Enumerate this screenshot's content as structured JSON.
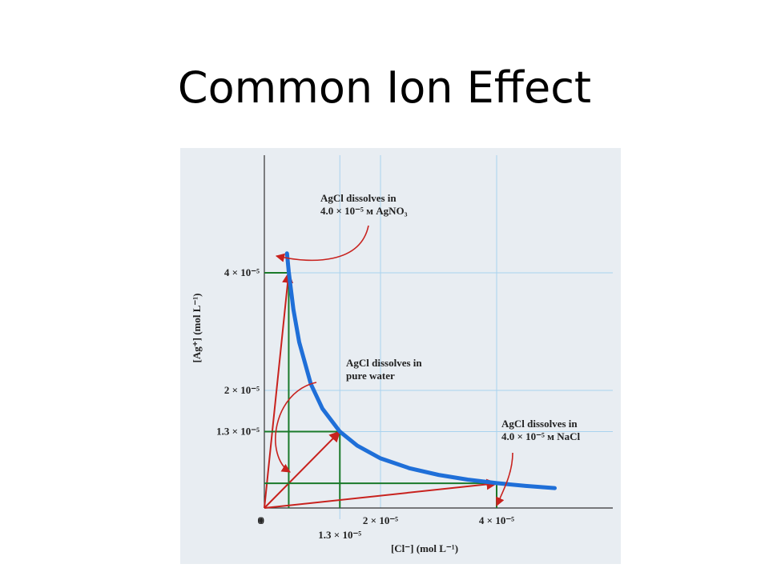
{
  "title": "Common Ion Effect",
  "chart_data": {
    "type": "line",
    "x_label": "[Cl⁻] (mol L⁻¹)",
    "y_label": "[Ag⁺] (mol L⁻¹)",
    "xlim": [
      0,
      6e-05
    ],
    "ylim": [
      0,
      6e-05
    ],
    "xticks": [
      0,
      {
        "value": 1.3e-05,
        "label": "1.3 × 10⁻⁵"
      },
      {
        "value": 2e-05,
        "label": "2 × 10⁻⁵"
      },
      {
        "value": 4e-05,
        "label": "4 × 10⁻⁵"
      }
    ],
    "yticks": [
      {
        "value": 1.3e-05,
        "label": "1.3 × 10⁻⁵"
      },
      {
        "value": 2e-05,
        "label": "2 × 10⁻⁵"
      },
      {
        "value": 4e-05,
        "label": "4 × 10⁻⁵"
      }
    ],
    "grid": true,
    "series": [
      {
        "color": "#1f6fd8",
        "x": [
          3.9e-06,
          4.2e-06,
          5e-06,
          6e-06,
          8e-06,
          1e-05,
          1.3e-05,
          1.6e-05,
          2e-05,
          2.5e-05,
          3e-05,
          3.5e-05,
          4e-05,
          4.5e-05,
          5e-05
        ],
        "values": [
          4.33e-05,
          4.02e-05,
          3.38e-05,
          2.82e-05,
          2.11e-05,
          1.69e-05,
          1.3e-05,
          1.06e-05,
          8.45e-06,
          6.76e-06,
          5.63e-06,
          4.83e-06,
          4.23e-06,
          3.76e-06,
          3.38e-06
        ]
      }
    ],
    "highlights": [
      {
        "x": 4.2e-06,
        "y": 4e-05
      },
      {
        "x": 1.3e-05,
        "y": 1.3e-05
      },
      {
        "x": 4e-05,
        "y": 4.2e-06
      }
    ],
    "annotations": [
      [
        "AgCl dissolves in",
        "4.0 × 10⁻⁵ м AgNO₃"
      ],
      [
        "AgCl dissolves in",
        "pure water"
      ],
      [
        "AgCl dissolves in",
        "4.0 × 10⁻⁵ м NaCl"
      ]
    ],
    "origin_label": "0"
  }
}
